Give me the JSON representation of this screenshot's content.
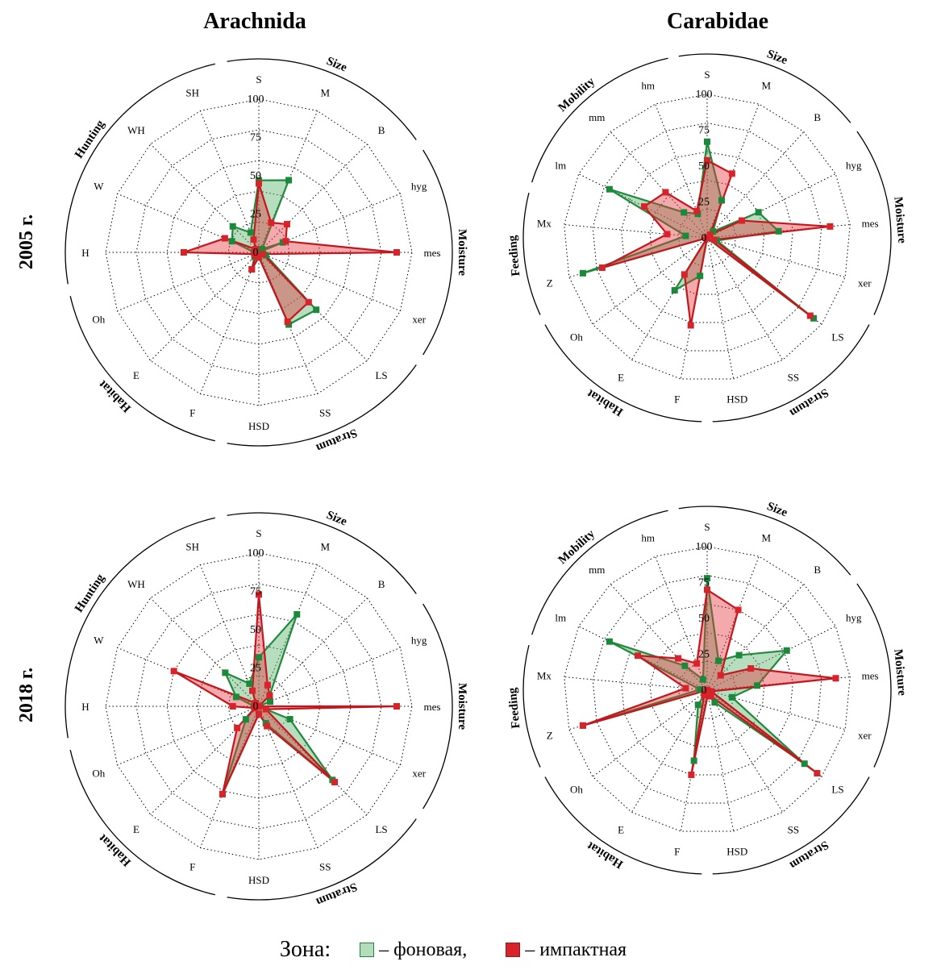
{
  "legend": {
    "title": "Зона:",
    "items": [
      {
        "label": "– фоновая,",
        "fill": "#b3dcbc",
        "stroke": "#1f8a3b"
      },
      {
        "label": "– импактная",
        "fill": "#d8232a",
        "stroke": "#8f1b1f"
      }
    ]
  },
  "colors": {
    "background_zone_fill": "#5cb36e",
    "background_zone_stroke": "#1f8a3b",
    "impact_zone_fill": "#e4343c",
    "impact_zone_stroke": "#c4161c",
    "marker_background": "#1a8a3a",
    "marker_impact": "#d8232a"
  },
  "tick_labels": [
    "0",
    "25",
    "50",
    "75",
    "100"
  ],
  "chart_data": [
    {
      "type": "radar",
      "title": "Arachnida",
      "row_label": "2005 г.",
      "axes": [
        "S",
        "M",
        "B",
        "hyg",
        "mes",
        "xer",
        "LS",
        "SS",
        "HSD",
        "F",
        "E",
        "Oh",
        "H",
        "W",
        "WH",
        "SH"
      ],
      "groups": [
        {
          "name": "Size",
          "axes": [
            "S",
            "M",
            "B"
          ]
        },
        {
          "name": "Moisture",
          "axes": [
            "hyg",
            "mes",
            "xer"
          ]
        },
        {
          "name": "Stratum",
          "axes": [
            "LS",
            "SS",
            "HSD"
          ]
        },
        {
          "name": "Habitat",
          "axes": [
            "F",
            "E",
            "Oh"
          ]
        },
        {
          "name": "Hunting",
          "axes": [
            "H",
            "W",
            "WH",
            "SH"
          ]
        }
      ],
      "ylim": [
        0,
        100
      ],
      "series": [
        {
          "name": "фоновая",
          "values": [
            47,
            51,
            3,
            17,
            0,
            5,
            53,
            51,
            3,
            12,
            4,
            2,
            3,
            19,
            24,
            14
          ]
        },
        {
          "name": "импактная",
          "values": [
            45,
            21,
            26,
            19,
            90,
            3,
            46,
            49,
            3,
            12,
            3,
            3,
            49,
            24,
            3,
            9
          ]
        }
      ]
    },
    {
      "type": "radar",
      "title": "Carabidae",
      "row_label": "2005 г.",
      "axes": [
        "S",
        "M",
        "B",
        "hyg",
        "mes",
        "xer",
        "LS",
        "SS",
        "HSD",
        "F",
        "E",
        "Oh",
        "Z",
        "Mx",
        "lm",
        "mm",
        "hm"
      ],
      "groups": [
        {
          "name": "Size",
          "axes": [
            "S",
            "M",
            "B"
          ]
        },
        {
          "name": "Moisture",
          "axes": [
            "hyg",
            "mes",
            "xer"
          ]
        },
        {
          "name": "Stratum",
          "axes": [
            "LS",
            "SS",
            "HSD"
          ]
        },
        {
          "name": "Habitat",
          "axes": [
            "F",
            "E",
            "Oh"
          ]
        },
        {
          "name": "Feeding",
          "axes": [
            "Z",
            "Mx"
          ]
        },
        {
          "name": "Mobility",
          "axes": [
            "lm",
            "mm",
            "hm"
          ]
        }
      ],
      "ylim": [
        0,
        100
      ],
      "series": [
        {
          "name": "фоновая",
          "values": [
            67,
            28,
            6,
            40,
            50,
            7,
            93,
            0,
            0,
            27,
            43,
            0,
            90,
            15,
            76,
            24,
            18
          ]
        },
        {
          "name": "импактная",
          "values": [
            54,
            48,
            3,
            27,
            86,
            5,
            90,
            0,
            0,
            62,
            30,
            0,
            76,
            28,
            49,
            43,
            20
          ]
        }
      ]
    },
    {
      "type": "radar",
      "title": "",
      "row_label": "2018 г.",
      "axes": [
        "S",
        "M",
        "B",
        "hyg",
        "mes",
        "xer",
        "LS",
        "SS",
        "HSD",
        "F",
        "E",
        "Oh",
        "H",
        "W",
        "WH",
        "SH"
      ],
      "groups": [
        {
          "name": "Size",
          "axes": [
            "S",
            "M",
            "B"
          ]
        },
        {
          "name": "Moisture",
          "axes": [
            "hyg",
            "mes",
            "xer"
          ]
        },
        {
          "name": "Stratum",
          "axes": [
            "LS",
            "SS",
            "HSD"
          ]
        },
        {
          "name": "Habitat",
          "axes": [
            "F",
            "E",
            "Oh"
          ]
        },
        {
          "name": "Hunting",
          "axes": [
            "H",
            "W",
            "WH",
            "SH"
          ]
        }
      ],
      "ylim": [
        0,
        100
      ],
      "series": [
        {
          "name": "фоновая",
          "values": [
            32,
            65,
            10,
            8,
            0,
            22,
            68,
            12,
            5,
            62,
            12,
            3,
            3,
            16,
            31,
            16
          ]
        },
        {
          "name": "импактная",
          "values": [
            73,
            15,
            10,
            0,
            90,
            5,
            70,
            14,
            5,
            62,
            20,
            3,
            17,
            60,
            3,
            11
          ]
        }
      ]
    },
    {
      "type": "radar",
      "title": "",
      "row_label": "2018 г.",
      "axes": [
        "S",
        "M",
        "B",
        "hyg",
        "mes",
        "xer",
        "LS",
        "SS",
        "HSD",
        "F",
        "E",
        "Oh",
        "Z",
        "Mx",
        "lm",
        "mm",
        "hm"
      ],
      "groups": [
        {
          "name": "Size",
          "axes": [
            "S",
            "M",
            "B"
          ]
        },
        {
          "name": "Moisture",
          "axes": [
            "hyg",
            "mes",
            "xer"
          ]
        },
        {
          "name": "Stratum",
          "axes": [
            "LS",
            "SS",
            "HSD"
          ]
        },
        {
          "name": "Habitat",
          "axes": [
            "F",
            "E",
            "Oh"
          ]
        },
        {
          "name": "Feeding",
          "axes": [
            "Z",
            "Mx"
          ]
        },
        {
          "name": "Mobility",
          "axes": [
            "lm",
            "mm",
            "hm"
          ]
        }
      ],
      "ylim": [
        0,
        100
      ],
      "series": [
        {
          "name": "фоновая",
          "values": [
            78,
            22,
            33,
            62,
            35,
            18,
            85,
            10,
            3,
            50,
            12,
            0,
            90,
            5,
            76,
            23,
            8
          ]
        },
        {
          "name": "импактная",
          "values": [
            70,
            60,
            14,
            34,
            90,
            3,
            96,
            5,
            3,
            60,
            4,
            0,
            90,
            15,
            54,
            30,
            20
          ]
        }
      ]
    }
  ]
}
